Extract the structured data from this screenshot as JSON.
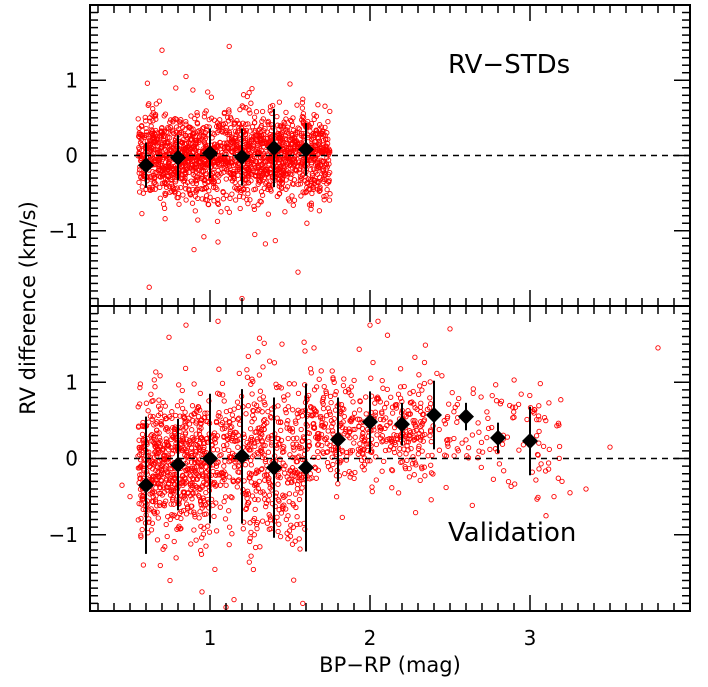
{
  "chart_data": [
    {
      "type": "scatter",
      "panel_label": "RV−STDs",
      "xlim": [
        0.25,
        4.0
      ],
      "ylim": [
        -2.0,
        2.0
      ],
      "y_ticks": [
        -1,
        0,
        1
      ],
      "y_tick_labels": [
        "−1",
        "0",
        "1"
      ],
      "reference_line_y": 0,
      "point_color": "#ff0000",
      "binned_series": {
        "x": [
          0.6,
          0.8,
          1.0,
          1.2,
          1.4,
          1.6
        ],
        "y": [
          -0.13,
          -0.03,
          0.03,
          -0.02,
          0.1,
          0.08
        ],
        "err": [
          0.3,
          0.3,
          0.33,
          0.38,
          0.52,
          0.35
        ]
      },
      "scatter_density": {
        "x_range": [
          0.55,
          1.75
        ],
        "y_mean": 0.0,
        "y_sigma": 0.28,
        "n_points": 1800
      },
      "scatter_outliers": {
        "x": [
          0.7,
          0.72,
          0.9,
          1.05,
          1.12,
          1.28,
          1.5,
          1.55,
          1.58,
          0.62,
          0.85,
          1.2
        ],
        "y": [
          1.4,
          1.1,
          -1.25,
          -1.15,
          1.45,
          -1.05,
          0.95,
          -1.55,
          0.75,
          -1.75,
          1.05,
          -1.9
        ]
      }
    },
    {
      "type": "scatter",
      "panel_label": "Validation",
      "xlim": [
        0.25,
        4.0
      ],
      "ylim": [
        -2.0,
        2.0
      ],
      "x_ticks": [
        1,
        2,
        3
      ],
      "x_tick_labels": [
        "1",
        "2",
        "3"
      ],
      "y_ticks": [
        -1,
        0,
        1
      ],
      "y_tick_labels": [
        "−1",
        "0",
        "1"
      ],
      "reference_line_y": 0,
      "point_color": "#ff0000",
      "binned_series": {
        "x": [
          0.6,
          0.8,
          1.0,
          1.2,
          1.4,
          1.6,
          1.8,
          2.0,
          2.2,
          2.4,
          2.6,
          2.8,
          3.0
        ],
        "y": [
          -0.35,
          -0.08,
          0.0,
          0.03,
          -0.12,
          -0.12,
          0.25,
          0.48,
          0.45,
          0.57,
          0.55,
          0.27,
          0.23
        ],
        "err": [
          0.9,
          0.6,
          0.85,
          0.88,
          0.92,
          1.1,
          0.55,
          0.4,
          0.28,
          0.45,
          0.18,
          0.2,
          0.45
        ]
      },
      "scatter_density": {
        "segments": [
          {
            "x_range": [
              0.55,
              1.0
            ],
            "y_mean": -0.1,
            "y_sigma": 0.45,
            "n_points": 650
          },
          {
            "x_range": [
              1.0,
              1.6
            ],
            "y_mean": 0.0,
            "y_sigma": 0.55,
            "n_points": 500
          },
          {
            "x_range": [
              1.6,
              2.4
            ],
            "y_mean": 0.35,
            "y_sigma": 0.35,
            "n_points": 450
          },
          {
            "x_range": [
              2.4,
              3.2
            ],
            "y_mean": 0.35,
            "y_sigma": 0.35,
            "n_points": 120
          }
        ]
      },
      "scatter_outliers": {
        "x": [
          0.45,
          0.5,
          0.75,
          0.85,
          1.05,
          1.15,
          1.3,
          1.45,
          1.58,
          1.65,
          2.0,
          2.05,
          2.5,
          3.15,
          3.25,
          3.35,
          3.5,
          3.8,
          0.95,
          1.1,
          3.1,
          3.2
        ],
        "y": [
          -0.35,
          -0.5,
          -1.6,
          1.75,
          1.8,
          -1.85,
          1.4,
          1.5,
          -1.9,
          1.45,
          1.75,
          1.8,
          1.7,
          -0.5,
          -0.45,
          -0.4,
          0.15,
          1.45,
          -1.75,
          -1.95,
          -0.75,
          -0.3
        ]
      }
    }
  ],
  "axes": {
    "x_title": "BP−RP (mag)",
    "y_title": "RV difference (km/s)"
  }
}
